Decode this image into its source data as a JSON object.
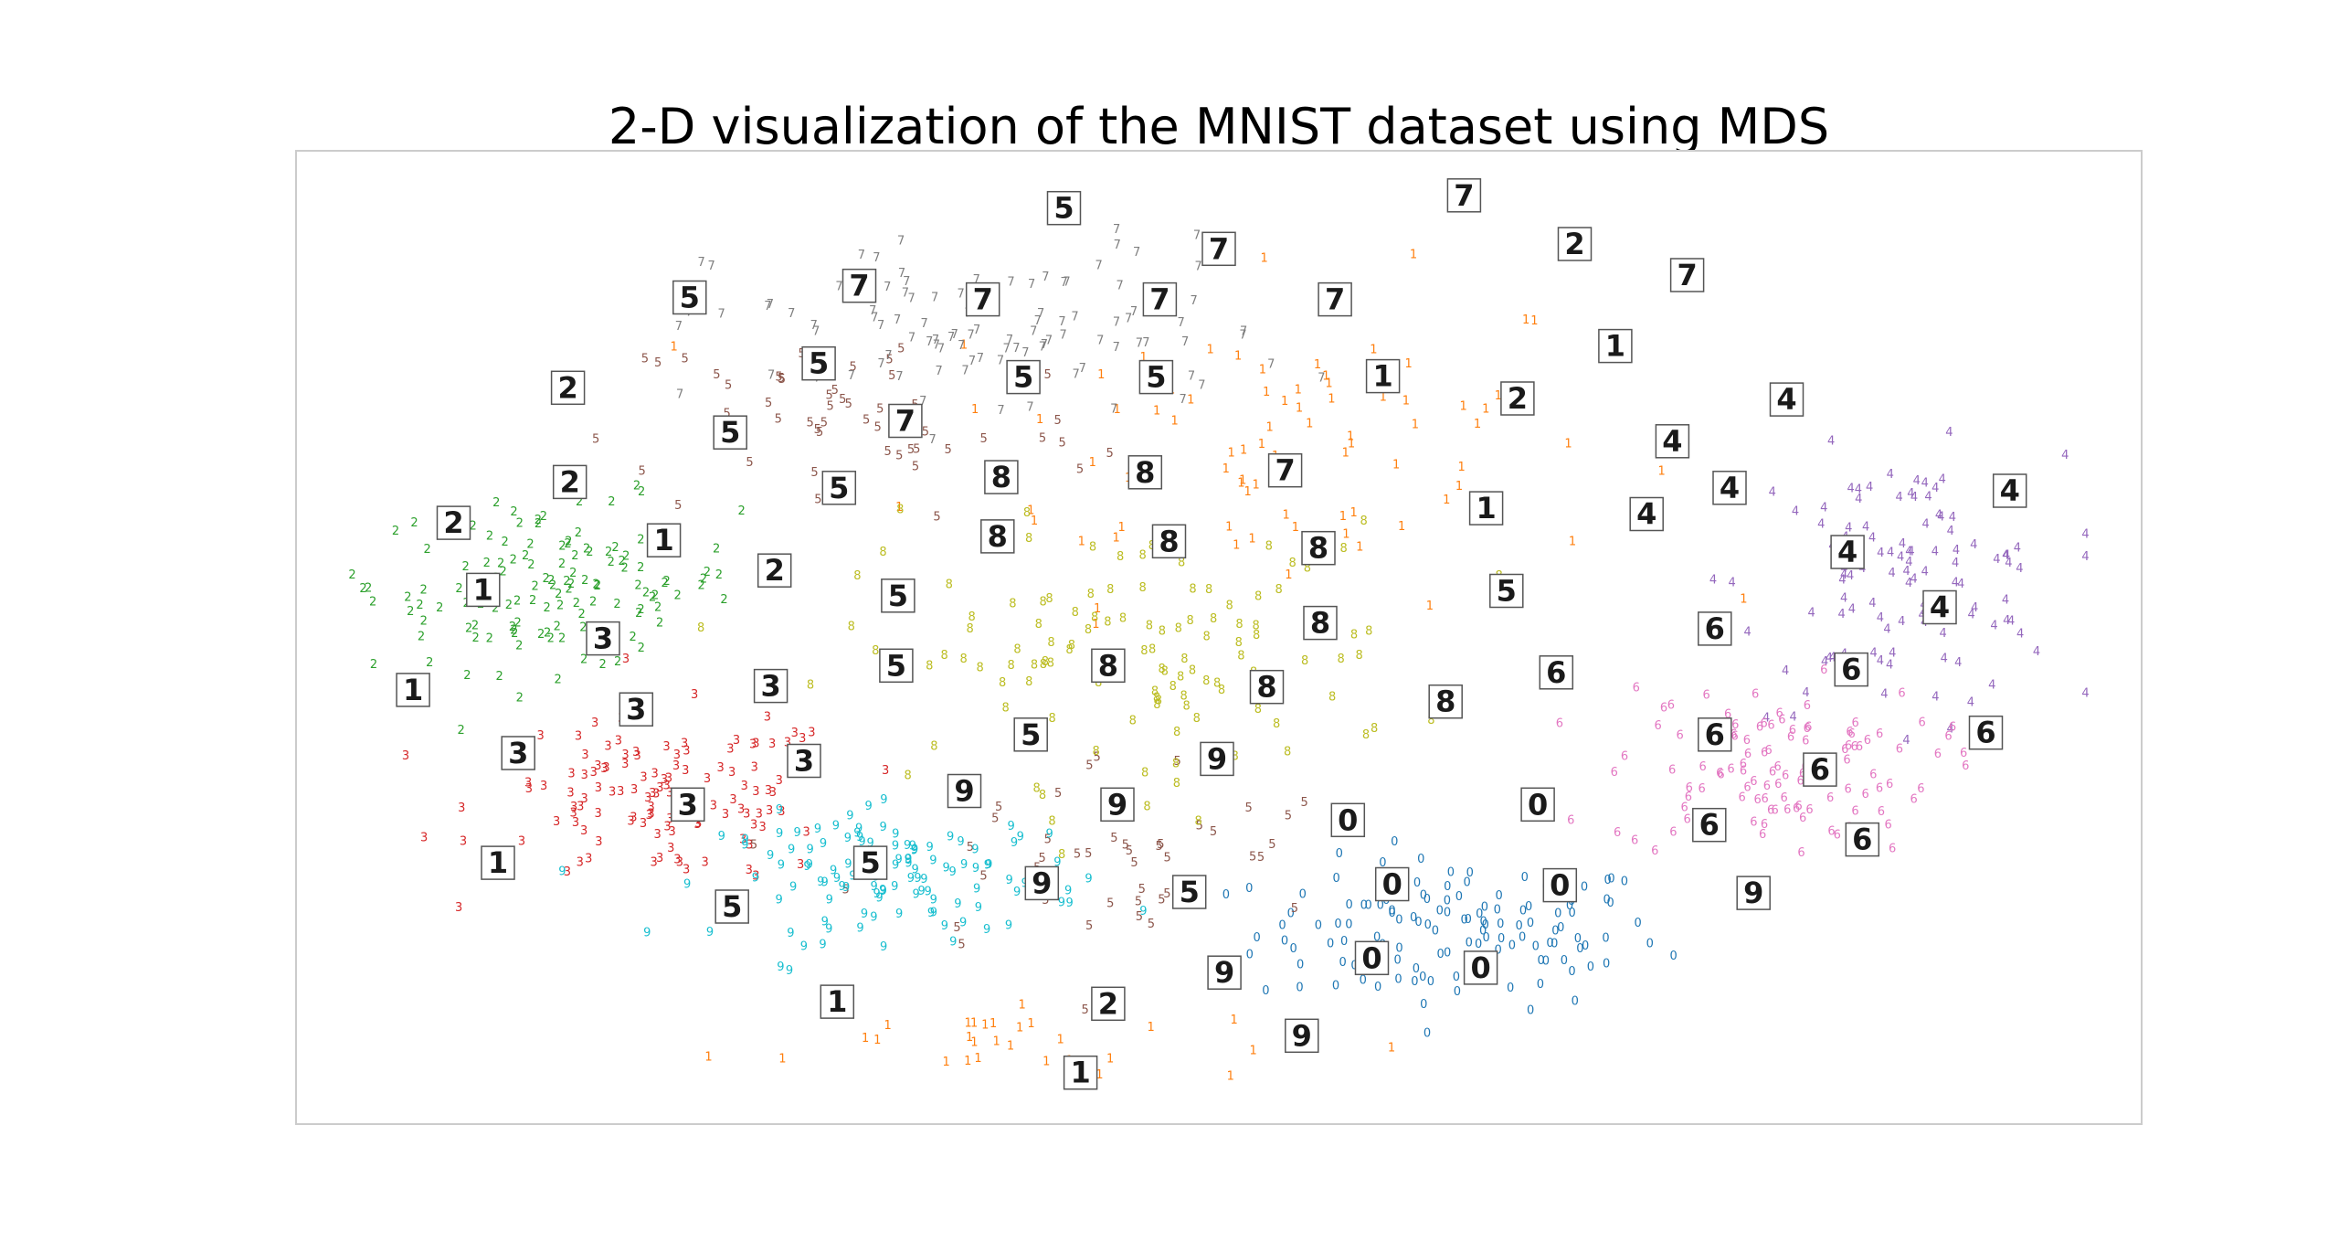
{
  "chart_data": {
    "type": "scatter",
    "title": "2-D visualization of the MNIST dataset using MDS",
    "xlabel": "",
    "ylabel": "",
    "xlim": [
      0,
      100
    ],
    "ylim": [
      0,
      100
    ],
    "grid": false,
    "axes_visible": false,
    "marker": "digit-label",
    "colors": {
      "0": "#1f77b4",
      "1": "#ff7f0e",
      "2": "#2ca02c",
      "3": "#d62728",
      "4": "#9467bd",
      "5": "#8c564b",
      "6": "#e377c2",
      "7": "#7f7f7f",
      "8": "#bcbd22",
      "9": "#17becf"
    },
    "clusters": [
      {
        "label": "0",
        "center": [
          63,
          19
        ],
        "spread": [
          10,
          7
        ],
        "count": 125
      },
      {
        "label": "1",
        "center": [
          53,
          70
        ],
        "spread": [
          17,
          15
        ],
        "count": 80
      },
      {
        "label": "1",
        "center": [
          38,
          8
        ],
        "spread": [
          14,
          4
        ],
        "count": 30
      },
      {
        "label": "2",
        "center": [
          14,
          55
        ],
        "spread": [
          9,
          8
        ],
        "count": 130
      },
      {
        "label": "3",
        "center": [
          20,
          33
        ],
        "spread": [
          9,
          8
        ],
        "count": 120
      },
      {
        "label": "4",
        "center": [
          87,
          55
        ],
        "spread": [
          8,
          12
        ],
        "count": 110
      },
      {
        "label": "5",
        "center": [
          30,
          72
        ],
        "spread": [
          12,
          10
        ],
        "count": 55
      },
      {
        "label": "5",
        "center": [
          44,
          27
        ],
        "spread": [
          12,
          10
        ],
        "count": 45
      },
      {
        "label": "6",
        "center": [
          80,
          36
        ],
        "spread": [
          8,
          8
        ],
        "count": 115
      },
      {
        "label": "7",
        "center": [
          38,
          81
        ],
        "spread": [
          14,
          9
        ],
        "count": 110
      },
      {
        "label": "8",
        "center": [
          45,
          48
        ],
        "spread": [
          14,
          12
        ],
        "count": 120
      },
      {
        "label": "9",
        "center": [
          33,
          25
        ],
        "spread": [
          9,
          6
        ],
        "count": 120
      }
    ],
    "thumbnails": [
      {
        "label": "5",
        "x": 41.6,
        "y": 94.2
      },
      {
        "label": "7",
        "x": 50.0,
        "y": 90.0
      },
      {
        "label": "7",
        "x": 63.3,
        "y": 95.5
      },
      {
        "label": "2",
        "x": 69.3,
        "y": 90.5
      },
      {
        "label": "7",
        "x": 75.4,
        "y": 87.3
      },
      {
        "label": "5",
        "x": 21.3,
        "y": 85.0
      },
      {
        "label": "7",
        "x": 30.5,
        "y": 86.2
      },
      {
        "label": "7",
        "x": 37.2,
        "y": 84.8
      },
      {
        "label": "7",
        "x": 46.8,
        "y": 84.8
      },
      {
        "label": "7",
        "x": 56.3,
        "y": 84.8
      },
      {
        "label": "1",
        "x": 71.5,
        "y": 80.0
      },
      {
        "label": "2",
        "x": 14.7,
        "y": 75.7
      },
      {
        "label": "5",
        "x": 28.3,
        "y": 78.2
      },
      {
        "label": "5",
        "x": 39.4,
        "y": 76.8
      },
      {
        "label": "5",
        "x": 46.6,
        "y": 76.8
      },
      {
        "label": "1",
        "x": 58.9,
        "y": 76.9
      },
      {
        "label": "2",
        "x": 66.2,
        "y": 74.6
      },
      {
        "label": "4",
        "x": 80.8,
        "y": 74.5
      },
      {
        "label": "5",
        "x": 23.5,
        "y": 71.1
      },
      {
        "label": "7",
        "x": 33.0,
        "y": 72.3
      },
      {
        "label": "4",
        "x": 74.6,
        "y": 70.2
      },
      {
        "label": "5",
        "x": 29.4,
        "y": 65.4
      },
      {
        "label": "8",
        "x": 38.2,
        "y": 66.5
      },
      {
        "label": "8",
        "x": 46.0,
        "y": 67.0
      },
      {
        "label": "7",
        "x": 53.6,
        "y": 67.2
      },
      {
        "label": "2",
        "x": 14.8,
        "y": 66.0
      },
      {
        "label": "4",
        "x": 77.7,
        "y": 65.4
      },
      {
        "label": "4",
        "x": 92.9,
        "y": 65.1
      },
      {
        "label": "1",
        "x": 64.5,
        "y": 63.3
      },
      {
        "label": "4",
        "x": 73.2,
        "y": 62.7
      },
      {
        "label": "2",
        "x": 8.5,
        "y": 61.8
      },
      {
        "label": "1",
        "x": 19.9,
        "y": 60.0
      },
      {
        "label": "8",
        "x": 38.0,
        "y": 60.4
      },
      {
        "label": "8",
        "x": 47.3,
        "y": 59.9
      },
      {
        "label": "8",
        "x": 55.4,
        "y": 59.2
      },
      {
        "label": "4",
        "x": 84.1,
        "y": 58.8
      },
      {
        "label": "2",
        "x": 25.9,
        "y": 56.9
      },
      {
        "label": "5",
        "x": 32.6,
        "y": 54.3
      },
      {
        "label": "5",
        "x": 65.6,
        "y": 54.8
      },
      {
        "label": "1",
        "x": 10.1,
        "y": 54.9
      },
      {
        "label": "4",
        "x": 89.1,
        "y": 53.1
      },
      {
        "label": "8",
        "x": 55.5,
        "y": 51.5
      },
      {
        "label": "6",
        "x": 76.9,
        "y": 50.9
      },
      {
        "label": "3",
        "x": 16.6,
        "y": 49.9
      },
      {
        "label": "5",
        "x": 32.5,
        "y": 47.1
      },
      {
        "label": "8",
        "x": 44.0,
        "y": 47.1
      },
      {
        "label": "6",
        "x": 68.3,
        "y": 46.4
      },
      {
        "label": "6",
        "x": 84.3,
        "y": 46.7
      },
      {
        "label": "1",
        "x": 6.3,
        "y": 44.6
      },
      {
        "label": "3",
        "x": 25.7,
        "y": 45.0
      },
      {
        "label": "8",
        "x": 52.6,
        "y": 44.9
      },
      {
        "label": "8",
        "x": 62.3,
        "y": 43.4
      },
      {
        "label": "3",
        "x": 18.4,
        "y": 42.6
      },
      {
        "label": "5",
        "x": 39.8,
        "y": 40.0
      },
      {
        "label": "6",
        "x": 76.9,
        "y": 40.0
      },
      {
        "label": "6",
        "x": 91.6,
        "y": 40.2
      },
      {
        "label": "3",
        "x": 12.0,
        "y": 38.1
      },
      {
        "label": "3",
        "x": 27.5,
        "y": 37.3
      },
      {
        "label": "9",
        "x": 49.9,
        "y": 37.5
      },
      {
        "label": "6",
        "x": 82.6,
        "y": 36.4
      },
      {
        "label": "9",
        "x": 36.2,
        "y": 34.2
      },
      {
        "label": "9",
        "x": 44.5,
        "y": 32.8
      },
      {
        "label": "3",
        "x": 21.2,
        "y": 32.8
      },
      {
        "label": "0",
        "x": 57.0,
        "y": 31.2
      },
      {
        "label": "0",
        "x": 67.3,
        "y": 32.8
      },
      {
        "label": "6",
        "x": 76.6,
        "y": 30.7
      },
      {
        "label": "6",
        "x": 84.9,
        "y": 29.2
      },
      {
        "label": "1",
        "x": 10.9,
        "y": 26.8
      },
      {
        "label": "5",
        "x": 31.1,
        "y": 26.8
      },
      {
        "label": "9",
        "x": 40.4,
        "y": 24.7
      },
      {
        "label": "5",
        "x": 48.4,
        "y": 23.8
      },
      {
        "label": "0",
        "x": 59.4,
        "y": 24.6
      },
      {
        "label": "0",
        "x": 68.5,
        "y": 24.5
      },
      {
        "label": "9",
        "x": 79.0,
        "y": 23.7
      },
      {
        "label": "5",
        "x": 23.6,
        "y": 22.3
      },
      {
        "label": "9",
        "x": 50.3,
        "y": 15.5
      },
      {
        "label": "0",
        "x": 58.3,
        "y": 17.0
      },
      {
        "label": "0",
        "x": 64.2,
        "y": 16.0
      },
      {
        "label": "1",
        "x": 29.3,
        "y": 12.5
      },
      {
        "label": "2",
        "x": 44.0,
        "y": 12.3
      },
      {
        "label": "9",
        "x": 54.5,
        "y": 9.0
      },
      {
        "label": "1",
        "x": 42.5,
        "y": 5.2
      }
    ]
  }
}
